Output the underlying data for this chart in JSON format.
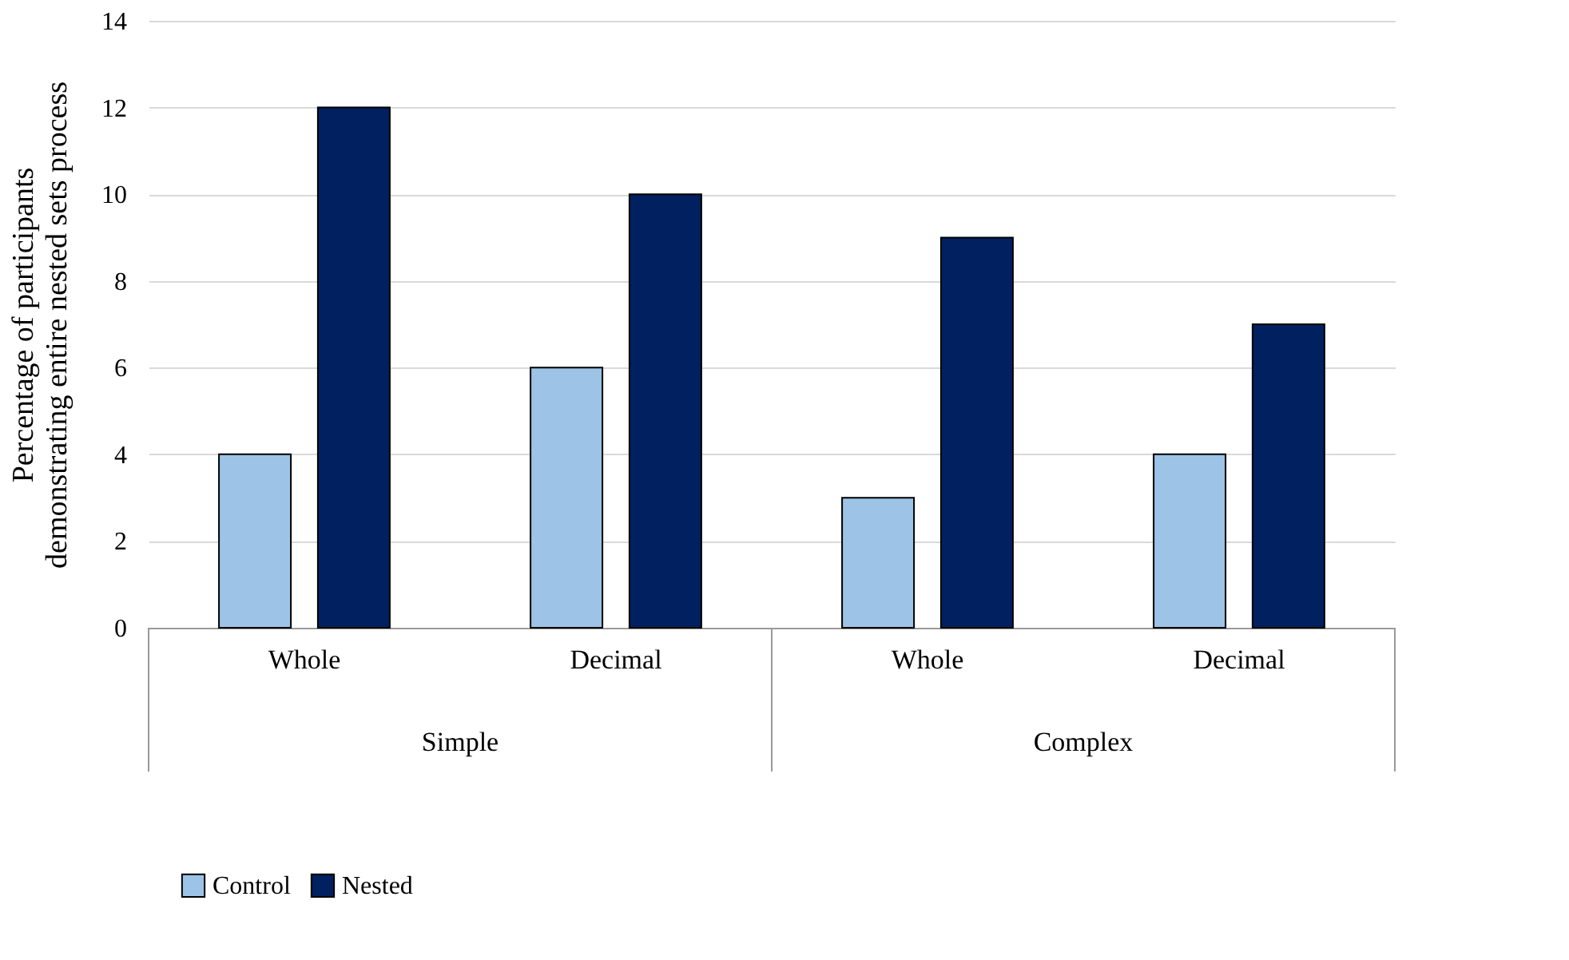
{
  "chart_data": {
    "type": "bar",
    "ylabel": "Percentage of participants demonstrating entire nested sets process",
    "categories": [
      "Whole",
      "Decimal",
      "Whole",
      "Decimal"
    ],
    "series": [
      {
        "name": "Control",
        "color": "#9dc3e6",
        "values": [
          4,
          6,
          3,
          4
        ]
      },
      {
        "name": "Nested",
        "color": "#002060",
        "values": [
          12,
          10,
          9,
          7
        ]
      }
    ],
    "annotations": [
      "Simple",
      "Complex"
    ],
    "ylim": [
      0,
      14
    ],
    "yticks": [
      0,
      2,
      4,
      6,
      8,
      10,
      12,
      14
    ],
    "grid": "y",
    "legend": "bottom"
  }
}
